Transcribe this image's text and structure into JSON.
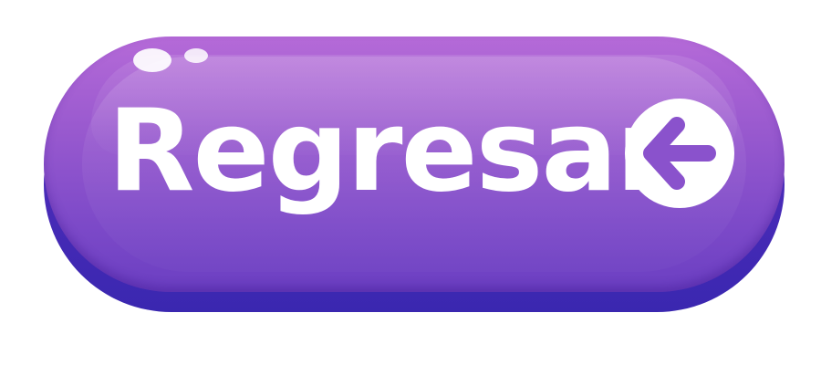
{
  "button": {
    "label": "Regresar",
    "icon": "arrow-left-circle-icon",
    "colors": {
      "top": "#b56ad8",
      "bottom": "#6b3fc2",
      "depth": "#3a27b0",
      "text": "#ffffff"
    }
  }
}
